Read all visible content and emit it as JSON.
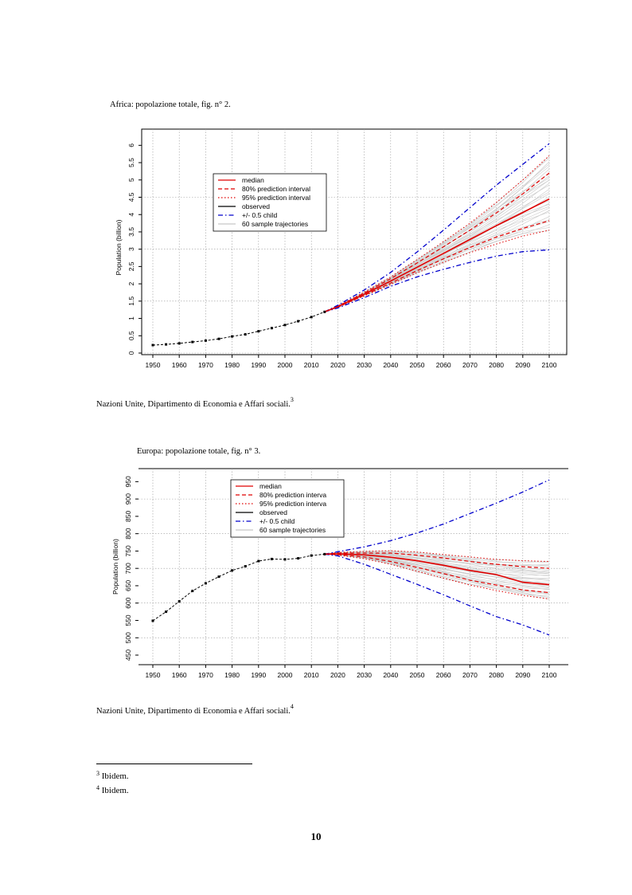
{
  "figure1": {
    "caption": "Africa: popolazione totale, fig. n° 2.",
    "source_text": "Nazioni Unite, Dipartimento di Economia e Affari sociali.",
    "source_note": "3",
    "legend": [
      "median",
      "80% prediction interval",
      "95% prediction interval",
      "observed",
      "+/- 0.5 child",
      "60 sample trajectories"
    ],
    "chart_data": {
      "type": "line",
      "ylabel": "Population (billion)",
      "xlim": [
        1950,
        2100
      ],
      "ylim": [
        0,
        6.1
      ],
      "x_ticks": [
        1950,
        1960,
        1970,
        1980,
        1990,
        2000,
        2010,
        2020,
        2030,
        2040,
        2050,
        2060,
        2070,
        2080,
        2090,
        2100
      ],
      "y_ticks": [
        0,
        0.5,
        1,
        1.5,
        2,
        2.5,
        3,
        3.5,
        4,
        4.5,
        5,
        5.5,
        6
      ],
      "y_grid": [
        0,
        1.5,
        3,
        4.5
      ],
      "grid": true,
      "legend_position": "top-left",
      "series": [
        {
          "name": "observed",
          "x": [
            1950,
            1955,
            1960,
            1965,
            1970,
            1975,
            1980,
            1985,
            1990,
            1995,
            2000,
            2005,
            2010,
            2015
          ],
          "y": [
            0.23,
            0.25,
            0.28,
            0.32,
            0.36,
            0.41,
            0.48,
            0.54,
            0.63,
            0.72,
            0.81,
            0.92,
            1.04,
            1.19
          ]
        },
        {
          "name": "median",
          "x": [
            2015,
            2020,
            2030,
            2040,
            2050,
            2060,
            2070,
            2080,
            2090,
            2100
          ],
          "y": [
            1.19,
            1.34,
            1.7,
            2.08,
            2.48,
            2.88,
            3.28,
            3.68,
            4.06,
            4.45
          ]
        },
        {
          "name": "80% prediction interval",
          "x": [
            2015,
            2020,
            2030,
            2040,
            2050,
            2060,
            2070,
            2080,
            2090,
            2100
          ],
          "y": [
            1.19,
            1.33,
            1.67,
            2.02,
            2.38,
            2.72,
            3.05,
            3.35,
            3.6,
            3.82
          ],
          "y2": [
            1.19,
            1.35,
            1.73,
            2.15,
            2.6,
            3.07,
            3.55,
            4.05,
            4.6,
            5.2
          ]
        },
        {
          "name": "95% prediction interval",
          "x": [
            2015,
            2020,
            2030,
            2040,
            2050,
            2060,
            2070,
            2080,
            2090,
            2100
          ],
          "y": [
            1.19,
            1.32,
            1.65,
            1.98,
            2.32,
            2.62,
            2.9,
            3.15,
            3.38,
            3.55
          ],
          "y2": [
            1.19,
            1.36,
            1.76,
            2.2,
            2.7,
            3.22,
            3.75,
            4.35,
            5.0,
            5.7
          ]
        },
        {
          "name": "+/- 0.5 child",
          "x": [
            2015,
            2020,
            2030,
            2040,
            2050,
            2060,
            2070,
            2080,
            2090,
            2100
          ],
          "y": [
            1.19,
            1.3,
            1.6,
            1.93,
            2.2,
            2.42,
            2.62,
            2.8,
            2.93,
            2.98
          ],
          "y2": [
            1.19,
            1.38,
            1.82,
            2.33,
            2.92,
            3.55,
            4.2,
            4.85,
            5.45,
            6.05
          ]
        }
      ]
    }
  },
  "figure2": {
    "caption": "Europa: popolazione totale, fig. n° 3.",
    "source_text": "Nazioni Unite, Dipartimento di Economia e Affari sociali.",
    "source_note": "4",
    "legend": [
      "median",
      "80% prediction interva",
      "95% prediction interva",
      "observed",
      "+/- 0.5 child",
      "60 sample trajectories"
    ],
    "chart_data": {
      "type": "line",
      "ylabel": "Population (billion)",
      "xlim": [
        1950,
        2100
      ],
      "ylim": [
        0.45,
        0.96
      ],
      "x_ticks": [
        1950,
        1960,
        1970,
        1980,
        1990,
        2000,
        2010,
        2020,
        2030,
        2040,
        2050,
        2060,
        2070,
        2080,
        2090,
        2100
      ],
      "y_ticks": [
        0.45,
        0.5,
        0.55,
        0.6,
        0.65,
        0.7,
        0.75,
        0.8,
        0.85,
        0.9,
        0.95
      ],
      "y_tick_labels": [
        "450",
        "500",
        "550",
        "600",
        "650",
        "700",
        "750",
        "800",
        "850",
        "900",
        "950"
      ],
      "y_grid": [
        0.5,
        0.6,
        0.7,
        0.8,
        0.9
      ],
      "grid": true,
      "legend_position": "top-left",
      "series": [
        {
          "name": "observed",
          "x": [
            1950,
            1955,
            1960,
            1965,
            1970,
            1975,
            1980,
            1985,
            1990,
            1995,
            2000,
            2005,
            2010,
            2015
          ],
          "y": [
            0.549,
            0.575,
            0.605,
            0.635,
            0.657,
            0.676,
            0.694,
            0.706,
            0.721,
            0.727,
            0.726,
            0.729,
            0.737,
            0.741
          ]
        },
        {
          "name": "median",
          "x": [
            2015,
            2020,
            2030,
            2040,
            2050,
            2060,
            2070,
            2080,
            2090,
            2100
          ],
          "y": [
            0.741,
            0.742,
            0.739,
            0.732,
            0.722,
            0.709,
            0.694,
            0.682,
            0.66,
            0.653
          ]
        },
        {
          "name": "80% prediction interval",
          "x": [
            2015,
            2020,
            2030,
            2040,
            2050,
            2060,
            2070,
            2080,
            2090,
            2100
          ],
          "y": [
            0.741,
            0.74,
            0.733,
            0.72,
            0.703,
            0.685,
            0.666,
            0.652,
            0.638,
            0.63
          ],
          "y2": [
            0.741,
            0.744,
            0.744,
            0.744,
            0.738,
            0.73,
            0.72,
            0.712,
            0.705,
            0.7
          ]
        },
        {
          "name": "95% prediction interval",
          "x": [
            2015,
            2020,
            2030,
            2040,
            2050,
            2060,
            2070,
            2080,
            2090,
            2100
          ],
          "y": [
            0.741,
            0.738,
            0.728,
            0.712,
            0.692,
            0.672,
            0.652,
            0.636,
            0.622,
            0.612
          ],
          "y2": [
            0.741,
            0.746,
            0.749,
            0.751,
            0.747,
            0.74,
            0.733,
            0.726,
            0.722,
            0.72
          ]
        },
        {
          "name": "+/- 0.5 child",
          "x": [
            2015,
            2020,
            2030,
            2040,
            2050,
            2060,
            2070,
            2080,
            2090,
            2100
          ],
          "y": [
            0.741,
            0.736,
            0.712,
            0.683,
            0.654,
            0.624,
            0.592,
            0.561,
            0.537,
            0.508
          ],
          "y2": [
            0.741,
            0.748,
            0.762,
            0.78,
            0.802,
            0.828,
            0.858,
            0.888,
            0.92,
            0.955
          ]
        }
      ]
    }
  },
  "footnotes": [
    {
      "num": "3",
      "text": "Ibidem."
    },
    {
      "num": "4",
      "text": "Ibidem."
    }
  ],
  "page_number": "10",
  "colors": {
    "median": "#e00000",
    "interval": "#e00000",
    "observed": "#000000",
    "child": "#0000cc",
    "trajectories": "#c8c8c8",
    "grid": "#9a9a9a"
  }
}
